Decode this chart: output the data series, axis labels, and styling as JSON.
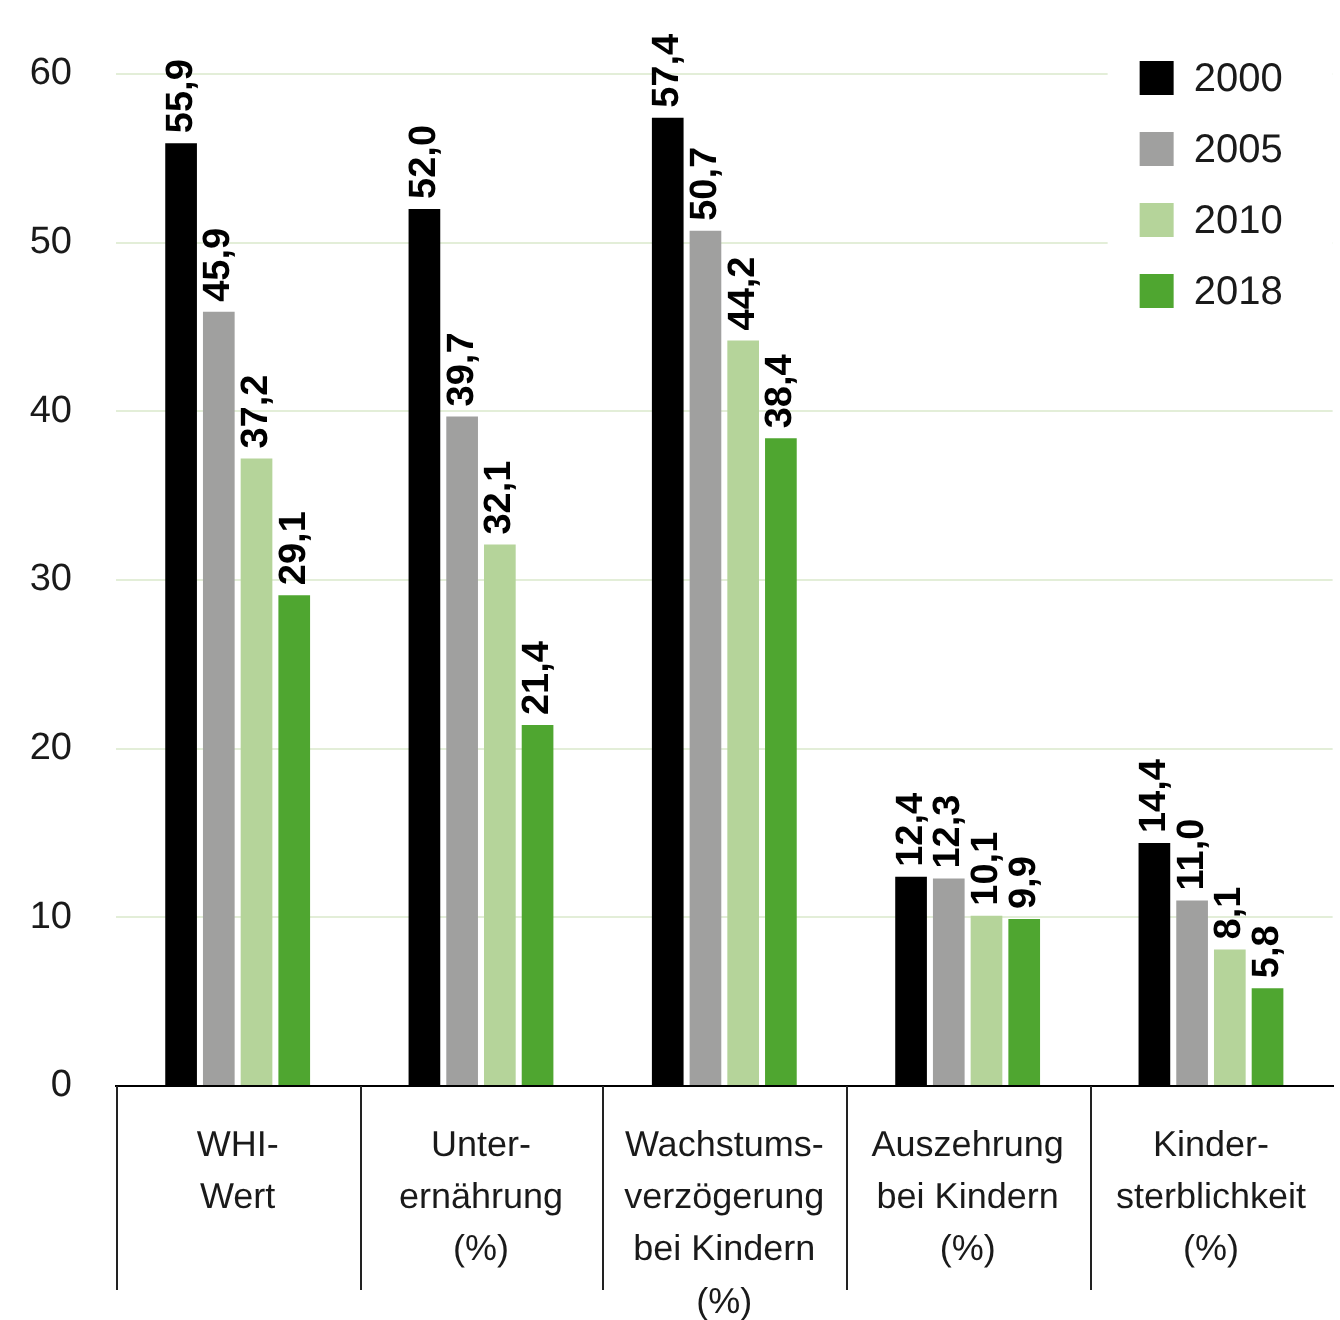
{
  "chart_data": {
    "type": "bar",
    "categories": [
      "WHI-\nWert",
      "Unter-\nernährung\n(%)",
      "Wachstums-\nverzögerung\nbei Kindern\n(%)",
      "Auszehrung\nbei Kindern\n(%)",
      "Kinder-\nsterblichkeit\n(%)"
    ],
    "series": [
      {
        "name": "2000",
        "color": "#000000",
        "values": [
          55.9,
          52.0,
          57.4,
          12.4,
          14.4
        ],
        "value_labels": [
          "55,9",
          "52,0",
          "57,4",
          "12,4",
          "14,4"
        ]
      },
      {
        "name": "2005",
        "color": "#a0a09f",
        "values": [
          45.9,
          39.7,
          50.7,
          12.3,
          11.0
        ],
        "value_labels": [
          "45,9",
          "39,7",
          "50,7",
          "12,3",
          "11,0"
        ]
      },
      {
        "name": "2010",
        "color": "#b5d49a",
        "values": [
          37.2,
          32.1,
          44.2,
          10.1,
          8.1
        ],
        "value_labels": [
          "37,2",
          "32,1",
          "44,2",
          "10,1",
          "8,1"
        ]
      },
      {
        "name": "2018",
        "color": "#4fa630",
        "values": [
          29.1,
          21.4,
          38.4,
          9.9,
          5.8
        ],
        "value_labels": [
          "29,1",
          "21,4",
          "38,4",
          "9,9",
          "5,8"
        ]
      }
    ],
    "ylim": [
      0,
      60
    ],
    "yticks": [
      0,
      10,
      20,
      30,
      40,
      50,
      60
    ],
    "grid": "y",
    "legend": "top right"
  }
}
